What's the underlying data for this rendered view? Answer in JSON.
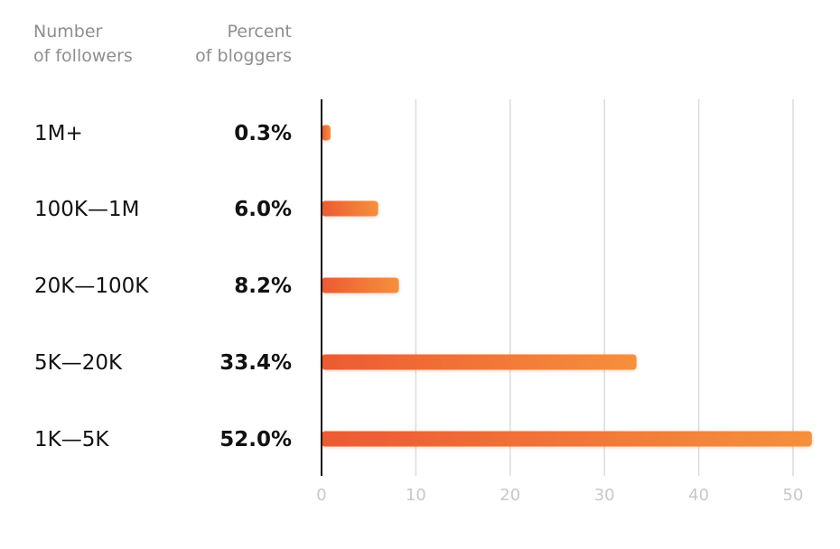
{
  "header": {
    "followers_line1": "Number",
    "followers_line2": "of followers",
    "percent_line1": "Percent",
    "percent_line2": "of bloggers"
  },
  "colors": {
    "bar_start": "#ec5a33",
    "bar_end": "#f5903c",
    "grid": "#dcdcdc",
    "axis": "#111111",
    "tick_text": "#c8c8c8"
  },
  "chart_data": {
    "type": "bar",
    "orientation": "horizontal",
    "categories": [
      "1M+",
      "100K—1M",
      "20K—100K",
      "5K—20K",
      "1K—5K"
    ],
    "values": [
      0.3,
      6.0,
      8.2,
      33.4,
      52.0
    ],
    "value_labels": [
      "0.3%",
      "6.0%",
      "8.2%",
      "33.4%",
      "52.0%"
    ],
    "xlim": [
      0,
      51
    ],
    "xticks": [
      0,
      10,
      20,
      30,
      40,
      50
    ],
    "grid": true
  }
}
